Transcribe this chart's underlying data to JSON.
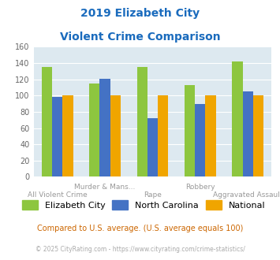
{
  "title_line1": "2019 Elizabeth City",
  "title_line2": "Violent Crime Comparison",
  "categories": [
    "All Violent Crime",
    "Murder & Mans...",
    "Rape",
    "Robbery",
    "Aggravated Assault"
  ],
  "row1_labels": [
    "",
    "Murder & Mans...",
    "",
    "Robbery",
    ""
  ],
  "row2_labels": [
    "All Violent Crime",
    "",
    "Rape",
    "",
    "Aggravated Assault"
  ],
  "series": {
    "Elizabeth City": [
      135,
      115,
      135,
      113,
      142
    ],
    "North Carolina": [
      98,
      121,
      72,
      90,
      105
    ],
    "National": [
      100,
      100,
      100,
      100,
      100
    ]
  },
  "colors": {
    "Elizabeth City": "#8dc63f",
    "North Carolina": "#4472c4",
    "National": "#f0a500"
  },
  "ylim": [
    0,
    160
  ],
  "yticks": [
    0,
    20,
    40,
    60,
    80,
    100,
    120,
    140,
    160
  ],
  "background_color": "#dde9f0",
  "title_color": "#1a6bbd",
  "footnote1": "Compared to U.S. average. (U.S. average equals 100)",
  "footnote2": "© 2025 CityRating.com - https://www.cityrating.com/crime-statistics/",
  "footnote1_color": "#cc6600",
  "footnote2_color": "#aaaaaa",
  "bar_width": 0.22,
  "label_fontsize": 6.5,
  "label_color": "#999999",
  "ytick_fontsize": 7,
  "ytick_color": "#666666",
  "title_fontsize": 10,
  "legend_fontsize": 8,
  "footnote1_fontsize": 7,
  "footnote2_fontsize": 5.5
}
